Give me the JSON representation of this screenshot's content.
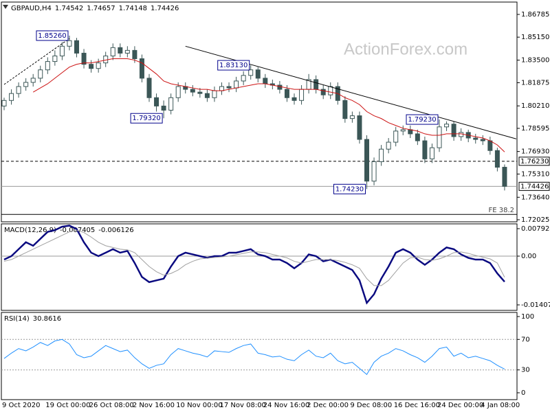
{
  "chart_data": [
    {
      "type": "candlestick",
      "title": "GBPAUD,H4",
      "header_values": [
        1.74542,
        1.74657,
        1.74148,
        1.74426
      ],
      "watermark": "ActionForex.com",
      "categories": [
        "9 Oct 2020",
        null,
        null,
        null,
        null,
        null,
        "19 Oct 00:00",
        null,
        null,
        null,
        null,
        null,
        "26 Oct 08:00",
        null,
        null,
        null,
        null,
        null,
        "2 Nov 16:00",
        null,
        null,
        null,
        null,
        null,
        "10 Nov 00:00",
        null,
        null,
        null,
        null,
        null,
        "17 Nov 08:00",
        null,
        null,
        null,
        null,
        null,
        "24 Nov 16:00",
        null,
        null,
        null,
        null,
        null,
        "2 Dec 00:00",
        null,
        null,
        null,
        null,
        null,
        "9 Dec 08:00",
        null,
        null,
        null,
        null,
        null,
        "16 Dec 16:00",
        null,
        null,
        null,
        null,
        null,
        "24 Dec 00:00",
        null,
        null,
        null,
        null,
        null,
        "4 Jan 08:00",
        null,
        null,
        null
      ],
      "open": [
        1.802,
        1.806,
        1.811,
        1.816,
        1.819,
        1.822,
        1.828,
        1.834,
        1.838,
        1.845,
        1.849,
        1.84,
        1.832,
        1.829,
        1.833,
        1.838,
        1.844,
        1.84,
        1.842,
        1.836,
        1.822,
        1.808,
        1.802,
        1.799,
        1.808,
        1.816,
        1.814,
        1.812,
        1.811,
        1.808,
        1.813,
        1.816,
        1.815,
        1.82,
        1.824,
        1.828,
        1.822,
        1.818,
        1.817,
        1.814,
        1.808,
        1.806,
        1.814,
        1.821,
        1.814,
        1.81,
        1.816,
        1.806,
        1.793,
        1.795,
        1.778,
        1.748,
        1.762,
        1.771,
        1.776,
        1.784,
        1.785,
        1.782,
        1.777,
        1.764,
        1.772,
        1.787,
        1.789,
        1.78,
        1.783,
        1.779,
        1.778,
        1.777,
        1.77,
        1.758
      ],
      "high": [
        1.808,
        1.814,
        1.819,
        1.822,
        1.825,
        1.831,
        1.837,
        1.842,
        1.848,
        1.8526,
        1.851,
        1.843,
        1.835,
        1.836,
        1.841,
        1.847,
        1.847,
        1.845,
        1.845,
        1.839,
        1.825,
        1.811,
        1.806,
        1.811,
        1.819,
        1.819,
        1.817,
        1.815,
        1.814,
        1.816,
        1.819,
        1.819,
        1.823,
        1.827,
        1.8313,
        1.83,
        1.825,
        1.821,
        1.82,
        1.817,
        1.811,
        1.817,
        1.825,
        1.824,
        1.817,
        1.819,
        1.819,
        1.809,
        1.798,
        1.798,
        1.781,
        1.765,
        1.774,
        1.779,
        1.787,
        1.788,
        1.788,
        1.785,
        1.78,
        1.775,
        1.7923,
        1.791,
        1.791,
        1.786,
        1.785,
        1.782,
        1.781,
        1.78,
        1.772,
        1.76
      ],
      "low": [
        1.799,
        1.803,
        1.808,
        1.813,
        1.816,
        1.819,
        1.825,
        1.831,
        1.835,
        1.842,
        1.837,
        1.829,
        1.826,
        1.826,
        1.83,
        1.835,
        1.837,
        1.837,
        1.833,
        1.819,
        1.805,
        1.798,
        1.7932,
        1.796,
        1.805,
        1.811,
        1.809,
        1.808,
        1.805,
        1.805,
        1.81,
        1.812,
        1.812,
        1.817,
        1.821,
        1.819,
        1.815,
        1.814,
        1.811,
        1.805,
        1.803,
        1.803,
        1.811,
        1.811,
        1.807,
        1.807,
        1.803,
        1.79,
        1.79,
        1.775,
        1.7423,
        1.745,
        1.759,
        1.768,
        1.773,
        1.781,
        1.779,
        1.774,
        1.761,
        1.761,
        1.769,
        1.784,
        1.777,
        1.777,
        1.776,
        1.775,
        1.774,
        1.767,
        1.755,
        1.7413
      ],
      "close": [
        1.806,
        1.811,
        1.816,
        1.819,
        1.822,
        1.828,
        1.834,
        1.838,
        1.845,
        1.849,
        1.84,
        1.832,
        1.829,
        1.833,
        1.838,
        1.844,
        1.84,
        1.842,
        1.836,
        1.822,
        1.808,
        1.802,
        1.799,
        1.808,
        1.816,
        1.814,
        1.812,
        1.811,
        1.808,
        1.813,
        1.816,
        1.815,
        1.82,
        1.824,
        1.828,
        1.822,
        1.818,
        1.817,
        1.814,
        1.808,
        1.806,
        1.814,
        1.821,
        1.814,
        1.81,
        1.816,
        1.806,
        1.793,
        1.795,
        1.778,
        1.748,
        1.762,
        1.771,
        1.776,
        1.784,
        1.785,
        1.782,
        1.777,
        1.764,
        1.772,
        1.787,
        1.789,
        1.78,
        1.783,
        1.779,
        1.778,
        1.777,
        1.77,
        1.758,
        1.74426
      ],
      "color": "#3b5656",
      "ma": {
        "color": "#cc1111",
        "values": [
          null,
          null,
          null,
          null,
          1.812,
          1.815,
          1.818,
          1.822,
          1.826,
          1.83,
          1.832,
          1.833,
          1.833,
          1.834,
          1.835,
          1.836,
          1.836,
          1.836,
          1.835,
          1.833,
          1.829,
          1.825,
          1.82,
          1.818,
          1.817,
          1.816,
          1.815,
          1.814,
          1.814,
          1.813,
          1.813,
          1.814,
          1.815,
          1.816,
          1.817,
          1.818,
          1.818,
          1.817,
          1.816,
          1.815,
          1.814,
          1.814,
          1.814,
          1.814,
          1.813,
          1.812,
          1.811,
          1.808,
          1.806,
          1.803,
          1.798,
          1.795,
          1.793,
          1.79,
          1.788,
          1.786,
          1.785,
          1.784,
          1.782,
          1.781,
          1.781,
          1.782,
          1.782,
          1.782,
          1.781,
          1.78,
          1.779,
          1.777,
          1.774,
          1.769
        ]
      },
      "ylim": [
        1.71877,
        1.87674
      ],
      "yticks": [
        1.86785,
        {
          "value": 1.8515,
          "label": "1.85150"
        },
        {
          "value": 1.835,
          "label": "1.83500"
        },
        1.81875,
        {
          "value": 1.8021,
          "label": "1.80210"
        },
        1.78595,
        {
          "value": 1.7693,
          "label": "1.76930"
        },
        {
          "value": 1.7531,
          "label": "1.75310"
        },
        {
          "value": 1.7364,
          "label": "1.73640"
        },
        1.72025
      ],
      "levels": [
        {
          "value": 1.7623,
          "label": "1.76230",
          "style": "dashed"
        },
        {
          "value": 1.74426,
          "style": "solid"
        }
      ],
      "fe": {
        "value": 1.7241,
        "label": "FE 38.2"
      },
      "trendlines": [
        {
          "x": [
            25,
            70.6
          ],
          "y": [
            1.845,
            1.7784
          ],
          "style": "solid"
        },
        {
          "x": [
            0,
            9
          ],
          "y": [
            1.8175,
            1.8505
          ],
          "style": "dashed"
        }
      ],
      "annotations": [
        {
          "index": 9,
          "value": 1.8526,
          "label": "1.85260"
        },
        {
          "index": 22,
          "value": 1.7932,
          "label": "1.79320"
        },
        {
          "index": 34,
          "value": 1.8313,
          "label": "1.83130"
        },
        {
          "index": 50,
          "value": 1.7423,
          "label": "1.74230"
        },
        {
          "index": 60,
          "value": 1.7923,
          "label": "1.79230"
        }
      ]
    },
    {
      "type": "line",
      "title": "MACD(12,26,9)",
      "header_values": [
        -0.007405,
        -0.006126
      ],
      "series": [
        {
          "color": "#0a0a80",
          "width": 2.5,
          "values": [
            -0.001,
            0.0,
            0.002,
            0.004,
            0.003,
            0.005,
            0.007,
            0.0075,
            0.0085,
            0.0088,
            0.0078,
            0.004,
            0.001,
            0.0,
            0.001,
            0.002,
            0.001,
            0.0015,
            -0.002,
            -0.006,
            -0.0075,
            -0.007,
            -0.0065,
            -0.003,
            0.0,
            0.001,
            0.0005,
            0.0,
            -0.0005,
            0.0,
            0.0,
            0.001,
            0.001,
            0.0015,
            0.002,
            0.0005,
            0.0,
            -0.001,
            -0.001,
            -0.002,
            -0.0035,
            -0.002,
            0.0005,
            0.0,
            -0.0015,
            -0.001,
            -0.002,
            -0.003,
            -0.004,
            -0.007,
            -0.0135,
            -0.011,
            -0.0065,
            -0.003,
            0.001,
            0.002,
            0.001,
            -0.001,
            -0.0025,
            -0.001,
            0.001,
            0.0025,
            0.002,
            0.0005,
            -0.0005,
            -0.001,
            -0.001,
            -0.002,
            -0.005,
            -0.0074
          ]
        },
        {
          "color": "#a0a0a0",
          "width": 1,
          "values": [
            -0.0015,
            -0.001,
            0.0,
            0.001,
            0.002,
            0.003,
            0.004,
            0.005,
            0.006,
            0.007,
            0.0075,
            0.0068,
            0.0055,
            0.004,
            0.003,
            0.0025,
            0.002,
            0.0018,
            0.001,
            -0.001,
            -0.003,
            -0.0045,
            -0.0055,
            -0.005,
            -0.004,
            -0.0025,
            -0.0015,
            -0.0008,
            -0.0006,
            -0.0004,
            -0.0002,
            0.0,
            0.0004,
            0.0008,
            0.0012,
            0.0012,
            0.001,
            0.0005,
            0.0,
            -0.0005,
            -0.0015,
            -0.002,
            -0.0015,
            -0.001,
            -0.001,
            -0.001,
            -0.0013,
            -0.0018,
            -0.0025,
            -0.0035,
            -0.0065,
            -0.0085,
            -0.0085,
            -0.007,
            -0.0045,
            -0.002,
            -0.0005,
            -0.0003,
            -0.001,
            -0.0012,
            -0.0008,
            0.0,
            0.001,
            0.0012,
            0.0008,
            0.0002,
            -0.0003,
            -0.0008,
            -0.002,
            -0.0061
          ]
        }
      ],
      "ylim": [
        -0.015655,
        0.009311
      ],
      "yticks": [
        0.007924,
        {
          "value": 0,
          "label": "0.00"
        },
        -0.01407
      ],
      "levels": [
        0
      ]
    },
    {
      "type": "line",
      "title": "RSI(14)",
      "header_values": [
        30.8616
      ],
      "series": [
        {
          "color": "#1e8fff",
          "width": 1,
          "values": [
            45,
            52,
            58,
            55,
            60,
            66,
            62,
            68,
            70,
            64,
            50,
            46,
            48,
            55,
            62,
            58,
            54,
            56,
            46,
            38,
            32,
            36,
            38,
            50,
            58,
            55,
            52,
            50,
            47,
            55,
            54,
            53,
            58,
            62,
            64,
            52,
            50,
            47,
            48,
            44,
            42,
            50,
            56,
            48,
            46,
            52,
            42,
            38,
            40,
            32,
            24,
            40,
            48,
            52,
            58,
            55,
            50,
            46,
            40,
            48,
            58,
            60,
            48,
            52,
            46,
            48,
            45,
            42,
            36,
            31
          ]
        }
      ],
      "ylim": [
        -9,
        105.4
      ],
      "yticks": [
        100,
        70,
        30,
        0
      ],
      "levels": [
        70,
        30
      ]
    }
  ]
}
